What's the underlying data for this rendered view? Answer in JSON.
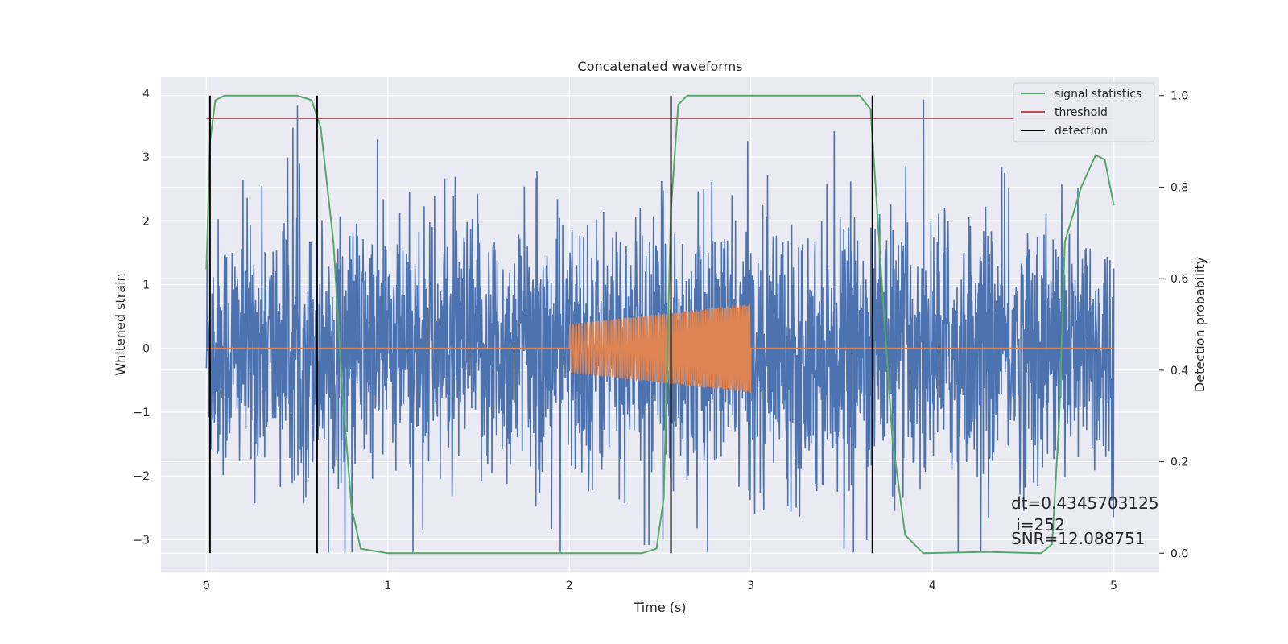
{
  "chart_data": {
    "type": "line",
    "title": "Concatenated waveforms",
    "xlabel": "Time (s)",
    "ylabel": "Whitened strain",
    "y2label": "Detection probability",
    "xlim": [
      -0.25,
      5.25
    ],
    "ylim": [
      -3.5,
      4.25
    ],
    "y2lim": [
      -0.04,
      1.04
    ],
    "xticks": [
      0,
      1,
      2,
      3,
      4,
      5
    ],
    "yticks": [
      -3,
      -2,
      -1,
      0,
      1,
      2,
      3,
      4
    ],
    "y2ticks": [
      0.0,
      0.2,
      0.4,
      0.6,
      0.8,
      1.0
    ],
    "xtick_labels": [
      "0",
      "1",
      "2",
      "3",
      "4",
      "5"
    ],
    "ytick_labels": [
      "−3",
      "−2",
      "−1",
      "0",
      "1",
      "2",
      "3",
      "4"
    ],
    "y2tick_labels": [
      "0.0",
      "0.2",
      "0.4",
      "0.6",
      "0.8",
      "1.0"
    ],
    "grid": true,
    "legend_position": "top-right",
    "background": "#eaeaf2",
    "series": [
      {
        "key": "strain",
        "color": "#4c72b0",
        "axis": "left",
        "description_values": {
          "x_range": [
            0,
            5
          ],
          "typical_amplitude": 1.0,
          "peak_max": 3.9,
          "peak_min": -3.2
        }
      },
      {
        "key": "injection",
        "color": "#dd8452",
        "axis": "left",
        "description_values": {
          "x_range": [
            2.0,
            3.0
          ],
          "start_amplitude": 0.38,
          "end_amplitude": 0.7
        }
      },
      {
        "name": "signal statistics",
        "color": "#55a868",
        "axis": "right",
        "x": [
          0.0,
          0.02,
          0.05,
          0.1,
          0.5,
          0.58,
          0.63,
          0.7,
          0.75,
          0.8,
          0.85,
          1.0,
          2.4,
          2.48,
          2.52,
          2.56,
          2.6,
          2.65,
          3.0,
          3.6,
          3.66,
          3.72,
          3.78,
          3.85,
          3.95,
          4.3,
          4.6,
          4.66,
          4.7,
          4.73,
          4.76,
          4.82,
          4.9,
          4.95,
          5.0
        ],
        "y": [
          0.62,
          0.9,
          0.99,
          1.0,
          1.0,
          0.99,
          0.93,
          0.68,
          0.35,
          0.1,
          0.01,
          0.0,
          0.0,
          0.01,
          0.12,
          0.75,
          0.98,
          1.0,
          1.0,
          1.0,
          0.97,
          0.6,
          0.25,
          0.04,
          0.0,
          0.003,
          0.0,
          0.02,
          0.3,
          0.68,
          0.72,
          0.8,
          0.87,
          0.86,
          0.76
        ]
      },
      {
        "name": "threshold",
        "color": "#c44e52",
        "axis": "right",
        "x": [
          0,
          5
        ],
        "y": [
          0.95,
          0.95
        ]
      },
      {
        "name": "detection",
        "color": "#000000",
        "axis": "right",
        "vlines": [
          0.02,
          0.61,
          2.56,
          3.67
        ]
      }
    ],
    "annotations": [
      "dt=0.4345703125",
      " i=252",
      "SNR=12.088751"
    ]
  }
}
